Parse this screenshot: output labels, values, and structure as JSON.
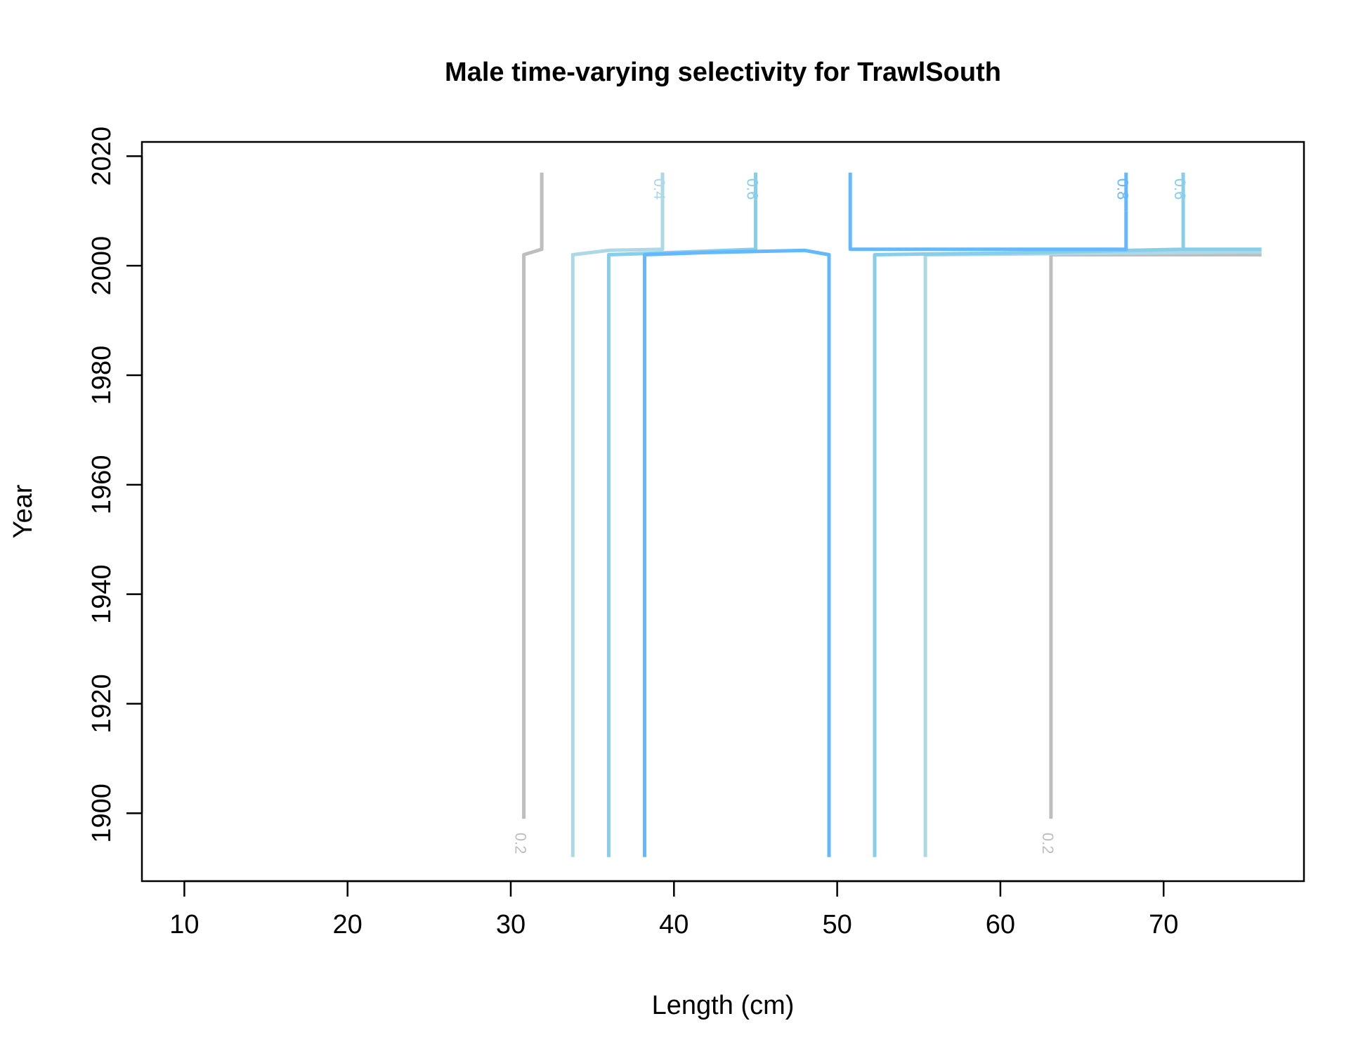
{
  "chart_data": {
    "type": "line",
    "title": "Male time-varying selectivity for TrawlSouth",
    "xlabel": "Length (cm)",
    "ylabel": "Year",
    "xlim": [
      7.4,
      78.6
    ],
    "ylim": [
      1887.6,
      2022.6
    ],
    "xticks": [
      10,
      20,
      30,
      40,
      50,
      60,
      70
    ],
    "yticks": [
      1900,
      1920,
      1940,
      1960,
      1980,
      2000,
      2020
    ],
    "grid": false,
    "legend": "none",
    "series": [
      {
        "label": "0.2",
        "color": "#bebebe",
        "points": [
          [
            30.8,
            1899
          ],
          [
            30.8,
            2002
          ],
          [
            31.9,
            2003
          ],
          [
            31.9,
            2017
          ]
        ],
        "label_pos": [
          30.6,
          1894.5
        ]
      },
      {
        "label": "0.2",
        "color": "#bebebe",
        "points": [
          [
            63.1,
            1899
          ],
          [
            63.1,
            2002
          ],
          [
            76,
            2002
          ]
        ],
        "label_pos": [
          62.9,
          1894.5
        ]
      },
      {
        "label": "",
        "color": "#add8e6",
        "points": [
          [
            33.8,
            1892
          ],
          [
            33.8,
            2002
          ],
          [
            36,
            2002.8
          ],
          [
            39.3,
            2003
          ],
          [
            39.3,
            2012
          ]
        ]
      },
      {
        "label": "0.4",
        "color": "#add8e6",
        "points": [
          [
            39.3,
            2012
          ],
          [
            39.3,
            2017
          ]
        ],
        "label_pos": [
          39.1,
          2014
        ]
      },
      {
        "label": "",
        "color": "#add8e6",
        "points": [
          [
            55.4,
            1892
          ],
          [
            55.4,
            2002
          ],
          [
            76,
            2002.5
          ]
        ]
      },
      {
        "label": "",
        "color": "#87ceeb",
        "points": [
          [
            36,
            1892
          ],
          [
            36,
            2002
          ],
          [
            38,
            2002.2
          ],
          [
            45,
            2003
          ],
          [
            45,
            2012
          ]
        ]
      },
      {
        "label": "0.6",
        "color": "#87ceeb",
        "points": [
          [
            45,
            2012
          ],
          [
            45,
            2017
          ]
        ],
        "label_pos": [
          44.8,
          2014
        ]
      },
      {
        "label": "",
        "color": "#87ceeb",
        "points": [
          [
            52.3,
            1892
          ],
          [
            52.3,
            2002
          ],
          [
            60,
            2002.3
          ],
          [
            71.2,
            2003
          ],
          [
            71.2,
            2012
          ]
        ]
      },
      {
        "label": "0.6",
        "color": "#87ceeb",
        "points": [
          [
            71.2,
            2012
          ],
          [
            71.2,
            2017
          ]
        ],
        "label_pos": [
          71,
          2014
        ]
      },
      {
        "label": "",
        "color": "#87ceeb",
        "points": [
          [
            71.2,
            2003
          ],
          [
            76,
            2003
          ]
        ]
      },
      {
        "label": "",
        "color": "#63b8ff",
        "points": [
          [
            38.2,
            1892
          ],
          [
            38.2,
            2002
          ],
          [
            42,
            2002.4
          ],
          [
            48,
            2002.8
          ],
          [
            49.5,
            2002
          ],
          [
            49.5,
            1892
          ]
        ]
      },
      {
        "label": "",
        "color": "#63b8ff",
        "points": [
          [
            50.8,
            2017
          ],
          [
            50.8,
            2003
          ],
          [
            67.7,
            2003
          ],
          [
            67.7,
            2010
          ]
        ]
      },
      {
        "label": "0.8",
        "color": "#63b8ff",
        "points": [
          [
            67.7,
            2010
          ],
          [
            67.7,
            2017
          ]
        ],
        "label_pos": [
          67.5,
          2014
        ]
      }
    ]
  }
}
